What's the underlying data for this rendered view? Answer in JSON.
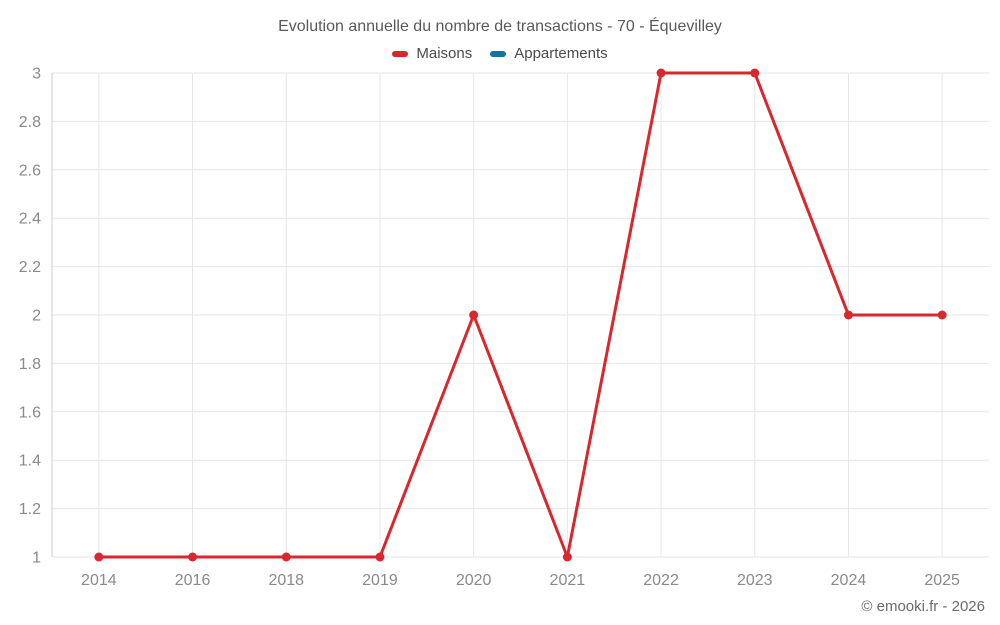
{
  "chart_data": {
    "type": "line",
    "title": "Evolution annuelle du nombre de transactions - 70 - Équevilley",
    "categories": [
      "2014",
      "2016",
      "2018",
      "2019",
      "2020",
      "2021",
      "2022",
      "2023",
      "2024",
      "2025"
    ],
    "series": [
      {
        "name": "Maisons",
        "color": "#d7282f",
        "values": [
          1,
          1,
          1,
          1,
          2,
          1,
          3,
          3,
          2,
          2
        ]
      },
      {
        "name": "Appartements",
        "color": "#1272a2",
        "values": []
      }
    ],
    "ylim": [
      1,
      3
    ],
    "ytick_step": 0.2,
    "ytick_labels": [
      "1",
      "1.2",
      "1.4",
      "1.6",
      "1.8",
      "2",
      "2.2",
      "2.4",
      "2.6",
      "2.8",
      "3"
    ],
    "xlabel": "",
    "ylabel": "",
    "grid": true,
    "legend_position": "top",
    "grid_color": "#e6e6e6",
    "axis_color": "#cccccc",
    "tick_color": "#8a8a8a"
  },
  "footer": {
    "copyright": "© emooki.fr - 2026"
  }
}
